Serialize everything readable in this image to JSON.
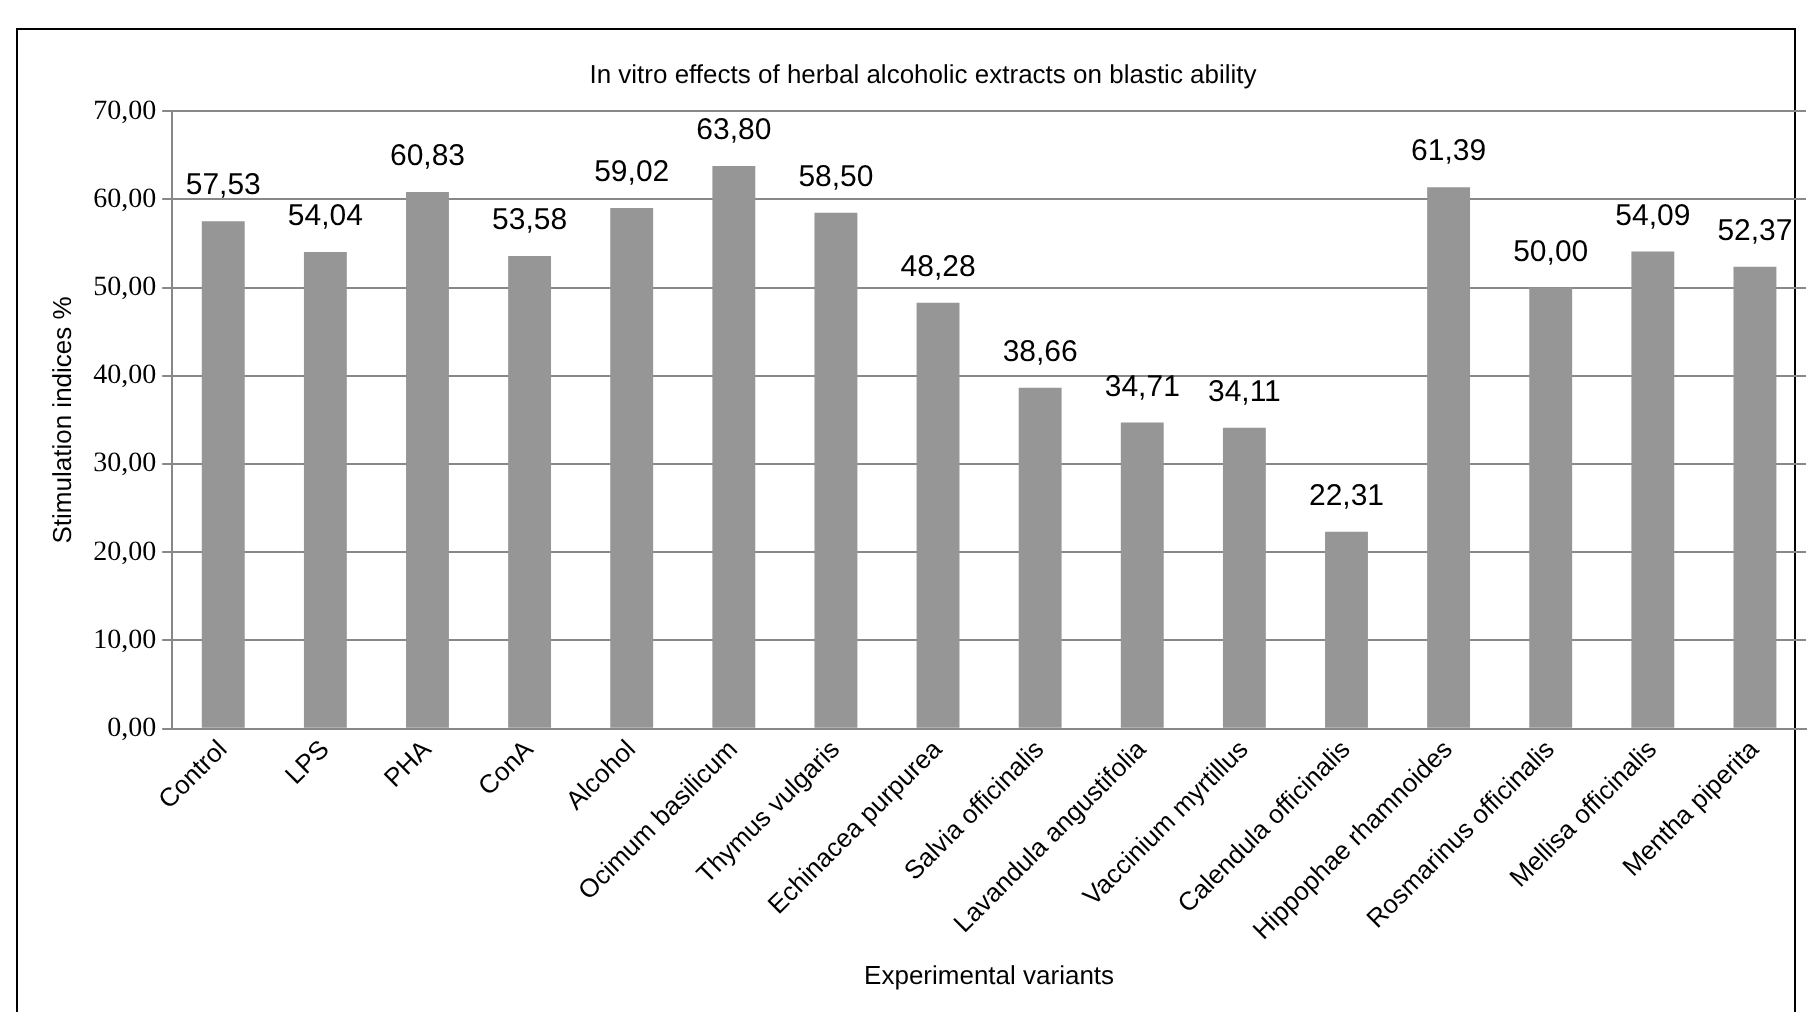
{
  "chart_data": {
    "type": "bar",
    "title": "In vitro effects of herbal alcoholic extracts on blastic ability",
    "xlabel": "Experimental variants",
    "ylabel": "Stimulation indices %",
    "categories": [
      "Control",
      "LPS",
      "PHA",
      "ConA",
      "Alcohol",
      "Ocimum basilicum",
      "Thymus vulgaris",
      "Echinacea purpurea",
      "Salvia officinalis",
      "Lavandula angustifolia",
      "Vaccinium myrtillus",
      "Calendula officinalis",
      "Hippophae rhamnoides",
      "Rosmarinus officinalis",
      "Mellisa officinalis",
      "Mentha piperita"
    ],
    "values": [
      57.53,
      54.04,
      60.83,
      53.58,
      59.02,
      63.8,
      58.5,
      48.28,
      38.66,
      34.71,
      34.11,
      22.31,
      61.39,
      50.0,
      54.09,
      52.37
    ],
    "value_labels": [
      "57,53",
      "54,04",
      "60,83",
      "53,58",
      "59,02",
      "63,80",
      "58,50",
      "48,28",
      "38,66",
      "34,71",
      "34,11",
      "22,31",
      "61,39",
      "50,00",
      "54,09",
      "52,37"
    ],
    "color": "#969696",
    "ylim": [
      0,
      70
    ],
    "yticks": [
      {
        "value": 0,
        "label": "0,00"
      },
      {
        "value": 10,
        "label": "10,00"
      },
      {
        "value": 20,
        "label": "20,00"
      },
      {
        "value": 30,
        "label": "30,00"
      },
      {
        "value": 40,
        "label": "40,00"
      },
      {
        "value": 50,
        "label": "50,00"
      },
      {
        "value": 60,
        "label": "60,00"
      },
      {
        "value": 70,
        "label": "70,00"
      }
    ],
    "grid": "y",
    "legend": false
  }
}
